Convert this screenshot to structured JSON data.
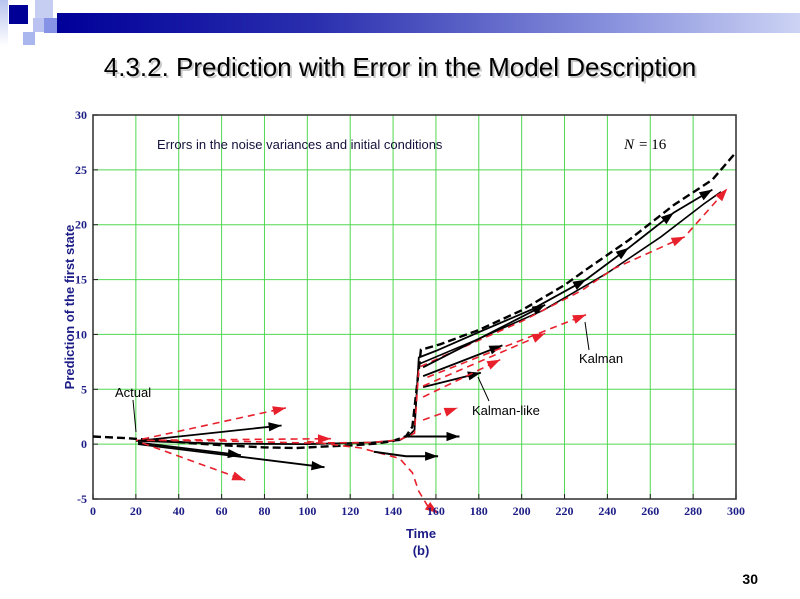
{
  "slide": {
    "title": "4.3.2. Prediction with Error in the Model Description",
    "page_number": "30"
  },
  "chart_data": {
    "type": "line",
    "title": "Errors in the noise variances and initial conditions",
    "n_var": "N",
    "n_rest": "= 16",
    "xlabel": "Time",
    "xlabel_sub": "(b)",
    "ylabel": "Prediction of the first state",
    "xlim": [
      0,
      300
    ],
    "ylim": [
      -5,
      30
    ],
    "xticks": [
      0,
      20,
      40,
      60,
      80,
      100,
      120,
      140,
      160,
      180,
      200,
      220,
      240,
      260,
      280,
      300
    ],
    "yticks": [
      -5,
      0,
      5,
      10,
      15,
      20,
      25,
      30
    ],
    "grid": true,
    "grid_color": "#50d850",
    "frame_color": "#3a3a3a",
    "tick_text_color": "#1c1c86",
    "labels": {
      "actual": "Actual",
      "kalman": "Kalman",
      "kalman_like": "Kalman-like"
    },
    "series": [
      {
        "name": "actual",
        "legend": "Actual",
        "color": "#000000",
        "width": 2.4,
        "dash": "8 4",
        "points": [
          [
            0,
            0.7
          ],
          [
            15,
            0.55
          ],
          [
            30,
            0.35
          ],
          [
            45,
            0.1
          ],
          [
            60,
            -0.1
          ],
          [
            80,
            -0.3
          ],
          [
            95,
            -0.35
          ],
          [
            110,
            -0.2
          ],
          [
            122,
            -0.1
          ],
          [
            132,
            0.05
          ],
          [
            140,
            0.3
          ],
          [
            146,
            0.7
          ],
          [
            149,
            1.6
          ],
          [
            151,
            5
          ],
          [
            153,
            8.6
          ],
          [
            162,
            9.1
          ],
          [
            180,
            10.4
          ],
          [
            200,
            12.2
          ],
          [
            220,
            14.5
          ],
          [
            230,
            15.9
          ],
          [
            250,
            18.6
          ],
          [
            271,
            21.8
          ],
          [
            289,
            24.1
          ],
          [
            300,
            26.6
          ]
        ],
        "arrows_at": []
      },
      {
        "name": "kalman-like-main",
        "legend": "Kalman-like",
        "color": "#000000",
        "width": 1.8,
        "dash": "",
        "points": [
          [
            20,
            0.3
          ],
          [
            60,
            0.05
          ],
          [
            100,
            0
          ],
          [
            130,
            0.15
          ],
          [
            143,
            0.35
          ],
          [
            148,
            0.9
          ],
          [
            150,
            1.3
          ],
          [
            152,
            7.9
          ],
          [
            160,
            8.5
          ],
          [
            180,
            10.2
          ],
          [
            205,
            12.3
          ],
          [
            230,
            15.0
          ],
          [
            250,
            17.9
          ],
          [
            271,
            21.1
          ],
          [
            289,
            23.2
          ]
        ],
        "arrows_at": [
          11,
          12,
          13,
          14
        ]
      },
      {
        "name": "kalman-like-2",
        "legend": "Kalman-like",
        "color": "#000000",
        "width": 1.6,
        "dash": "",
        "points": [
          [
            152,
            7.3
          ],
          [
            180,
            9.6
          ],
          [
            210,
            12.2
          ],
          [
            240,
            15.6
          ],
          [
            265,
            18.9
          ],
          [
            285,
            21.9
          ],
          [
            293,
            23.0
          ]
        ],
        "arrows_at": []
      },
      {
        "name": "kalman-main",
        "legend": "Kalman",
        "color": "#e8202c",
        "width": 1.6,
        "dash": "7 5",
        "points": [
          [
            20,
            0.35
          ],
          [
            60,
            0.3
          ],
          [
            100,
            0.1
          ],
          [
            130,
            0.15
          ],
          [
            143,
            0.4
          ],
          [
            148,
            0.8
          ],
          [
            150,
            1.0
          ],
          [
            152,
            7.0
          ],
          [
            170,
            8.6
          ],
          [
            200,
            11.2
          ],
          [
            228,
            14.0
          ],
          [
            243,
            16.0
          ],
          [
            276,
            18.9
          ],
          [
            296,
            23.3
          ]
        ],
        "arrows_at": [
          12,
          13
        ]
      },
      {
        "name": "kalman-like-arrow-up1",
        "legend": "Kalman-like",
        "color": "#000000",
        "width": 1.8,
        "dash": "",
        "points": [
          [
            21,
            0.3
          ],
          [
            88,
            1.7
          ]
        ],
        "arrows_at": [
          1
        ]
      },
      {
        "name": "kalman-like-arrow-down1",
        "legend": "Kalman-like",
        "color": "#000000",
        "width": 1.8,
        "dash": "",
        "points": [
          [
            21,
            0.15
          ],
          [
            69,
            -1.0
          ]
        ],
        "arrows_at": [
          1
        ]
      },
      {
        "name": "kalman-like-arrow-down2",
        "legend": "Kalman-like",
        "color": "#000000",
        "width": 1.8,
        "dash": "",
        "points": [
          [
            21,
            0
          ],
          [
            108,
            -2.1
          ]
        ],
        "arrows_at": [
          1
        ]
      },
      {
        "name": "kalman-arrow-up1",
        "legend": "Kalman",
        "color": "#e8202c",
        "width": 1.6,
        "dash": "7 5",
        "points": [
          [
            23,
            0.45
          ],
          [
            90,
            3.3
          ]
        ],
        "arrows_at": [
          1
        ]
      },
      {
        "name": "kalman-arrow-down1",
        "legend": "Kalman",
        "color": "#e8202c",
        "width": 1.6,
        "dash": "7 5",
        "points": [
          [
            23,
            0.1
          ],
          [
            71,
            -3.3
          ]
        ],
        "arrows_at": [
          1
        ]
      },
      {
        "name": "kalman-arrow-flat",
        "legend": "Kalman",
        "color": "#e8202c",
        "width": 1.6,
        "dash": "7 5",
        "points": [
          [
            25,
            0.35
          ],
          [
            111,
            0.5
          ]
        ],
        "arrows_at": [
          1
        ]
      },
      {
        "name": "kalman-dive",
        "legend": "Kalman",
        "color": "#e8202c",
        "width": 1.6,
        "dash": "7 5",
        "points": [
          [
            100,
            0.25
          ],
          [
            125,
            -0.35
          ],
          [
            143,
            -1.3
          ],
          [
            149,
            -2.6
          ],
          [
            152,
            -4.3
          ],
          [
            156,
            -5.6
          ],
          [
            161,
            -6.3
          ]
        ],
        "arrows_at": [
          6
        ]
      },
      {
        "name": "kalman-like-flat-upper",
        "legend": "Kalman-like",
        "color": "#000000",
        "width": 2,
        "dash": "",
        "points": [
          [
            145,
            0.7
          ],
          [
            171,
            0.7
          ]
        ],
        "arrows_at": [
          1
        ]
      },
      {
        "name": "kalman-like-flat-lower",
        "legend": "Kalman-like",
        "color": "#000000",
        "width": 2,
        "dash": "",
        "points": [
          [
            131,
            -0.7
          ],
          [
            146,
            -1.1
          ],
          [
            161,
            -1.1
          ]
        ],
        "arrows_at": [
          2
        ]
      },
      {
        "name": "kalman-like-post-fan1",
        "legend": "Kalman-like",
        "color": "#000000",
        "width": 1.8,
        "dash": "",
        "points": [
          [
            154,
            5.2
          ],
          [
            181,
            6.5
          ]
        ],
        "arrows_at": [
          1
        ]
      },
      {
        "name": "kalman-like-post-fan2",
        "legend": "Kalman-like",
        "color": "#000000",
        "width": 1.8,
        "dash": "",
        "points": [
          [
            154,
            6.2
          ],
          [
            191,
            9.0
          ]
        ],
        "arrows_at": [
          1
        ]
      },
      {
        "name": "kalman-like-post-fan3",
        "legend": "Kalman-like",
        "color": "#000000",
        "width": 1.8,
        "dash": "",
        "points": [
          [
            154,
            7.0
          ],
          [
            211,
            12.7
          ]
        ],
        "arrows_at": [
          1
        ]
      },
      {
        "name": "kalman-post-fan1",
        "legend": "Kalman",
        "color": "#e8202c",
        "width": 1.6,
        "dash": "7 5",
        "points": [
          [
            154,
            2.2
          ],
          [
            170,
            3.3
          ]
        ],
        "arrows_at": [
          1
        ]
      },
      {
        "name": "kalman-post-fan2",
        "legend": "Kalman",
        "color": "#e8202c",
        "width": 1.6,
        "dash": "7 5",
        "points": [
          [
            154,
            4.3
          ],
          [
            190,
            7.7
          ]
        ],
        "arrows_at": [
          1
        ]
      },
      {
        "name": "kalman-post-fan3",
        "legend": "Kalman",
        "color": "#e8202c",
        "width": 1.6,
        "dash": "7 5",
        "points": [
          [
            154,
            5.3
          ],
          [
            211,
            10.1
          ]
        ],
        "arrows_at": [
          1
        ]
      },
      {
        "name": "kalman-post-fan4",
        "legend": "Kalman",
        "color": "#e8202c",
        "width": 1.6,
        "dash": "7 5",
        "points": [
          [
            156,
            6.1
          ],
          [
            230,
            11.8
          ]
        ],
        "arrows_at": [
          1
        ]
      }
    ]
  }
}
